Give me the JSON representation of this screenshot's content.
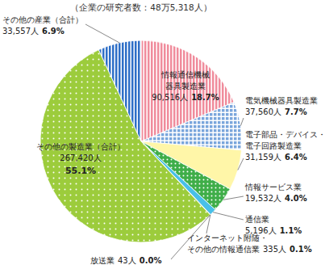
{
  "chart_data": {
    "type": "pie",
    "subtitle": "（企業の研究者数：48万5,318人）",
    "categories": [
      "情報通信機械\n器具製造業",
      "電気機械器具製造業",
      "電子部品・デバイス・\n電子回路製造業",
      "情報サービス業",
      "通信業",
      "インターネット附随・\nその他の情報通信業",
      "放送業",
      "その他の製造業（合計）",
      "その他の産業（合計）"
    ],
    "values": [
      90516,
      37560,
      31159,
      19532,
      5196,
      335,
      43,
      267420,
      33557
    ],
    "value_labels": [
      "90,516人",
      "37,560人",
      "31,159人",
      "19,532人",
      "5,196人",
      "335人",
      "43人",
      "267,420人",
      "33,557人"
    ],
    "percents": [
      18.7,
      7.7,
      6.4,
      4.0,
      1.1,
      0.1,
      0.0,
      55.1,
      6.9
    ],
    "percent_labels": [
      "18.7%",
      "7.7%",
      "6.4%",
      "4.0%",
      "1.1%",
      "0.1%",
      "0.0%",
      "55.1%",
      "6.9%"
    ],
    "colors": [
      "#f08c9c",
      "#7aa6dc",
      "#fff6a8",
      "#3fae49",
      "#48c0e8",
      "#2a5ca8",
      "#1d3f7a",
      "#9ccc3c",
      "#2e6fc7"
    ],
    "data_labels": true
  }
}
